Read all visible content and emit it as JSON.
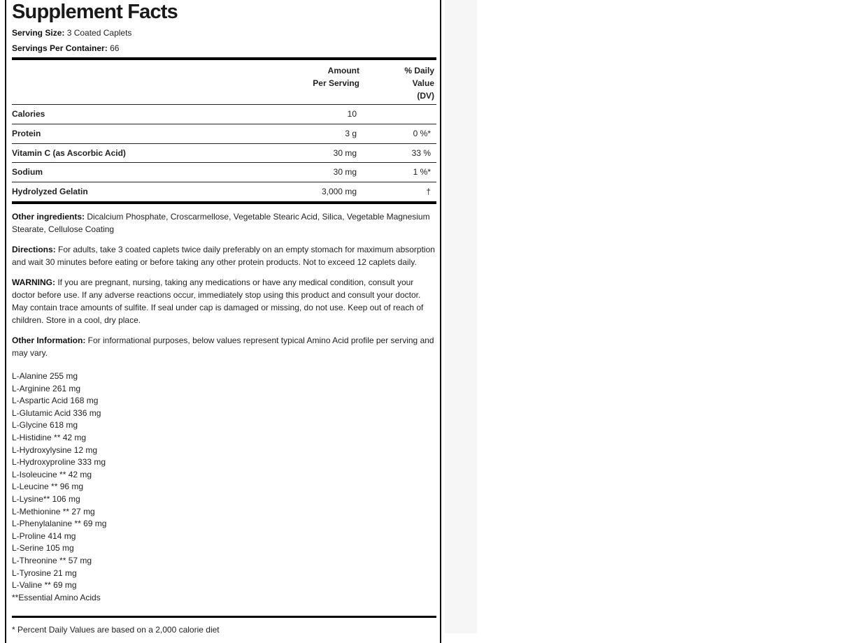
{
  "title": "Supplement Facts",
  "serving_size": {
    "label": "Serving Size:",
    "value": "3 Coated Caplets"
  },
  "servings_per_container": {
    "label": "Servings Per Container:",
    "value": "66"
  },
  "table": {
    "header": {
      "amount_line1": "Amount",
      "amount_line2": "Per Serving",
      "dv_line1": "% Daily",
      "dv_line2": "Value",
      "dv_line3": "(DV)"
    },
    "rows": [
      {
        "name": "Calories",
        "amount": "10",
        "dv": ""
      },
      {
        "name": "Protein",
        "amount": "3 g",
        "dv": "0 %*"
      },
      {
        "name": "Vitamin C (as Ascorbic Acid)",
        "amount": "30 mg",
        "dv": "33 %"
      },
      {
        "name": "Sodium",
        "amount": "30 mg",
        "dv": "1 %*"
      },
      {
        "name": "Hydrolyzed Gelatin",
        "amount": "3,000 mg",
        "dv": "†"
      }
    ]
  },
  "other_ingredients": {
    "label": "Other ingredients:",
    "text": " Dicalcium Phosphate, Croscarmellose, Vegetable Stearic Acid, Silica, Vegetable Magnesium Stearate, Cellulose Coating"
  },
  "directions": {
    "label": "Directions:",
    "text": " For adults, take 3 coated caplets twice daily preferably on an empty stomach for maximum absorption and wait 30 minutes before eating or before taking any other protein products. Not to exceed 12 caplets daily."
  },
  "warning": {
    "label": "WARNING:",
    "text": " If you are pregnant, nursing, taking any medications or have any medical condition, consult your doctor before use. If any adverse reactions occur, immediately stop using this product and consult your doctor. May contain trace amounts of sulfite. If seal under cap is damaged or missing, do not use. Keep out of reach of children. Store in a cool, dry place."
  },
  "other_information": {
    "label": "Other Information:",
    "text": " For informational purposes, below values represent typical Amino Acid profile per serving and may vary."
  },
  "amino_acids": [
    "L-Alanine 255 mg",
    "L-Arginine 261 mg",
    "L-Aspartic Acid 168 mg",
    "L-Glutamic Acid 336 mg",
    "L-Glycine 618 mg",
    "L-Histidine ** 42 mg",
    "L-Hydroxylysine 12 mg",
    "L-Hydroxyproline 333 mg",
    "L-Isoleucine ** 42 mg",
    "L-Leucine ** 96 mg",
    "L-Lysine** 106 mg",
    "L-Methionine ** 27 mg",
    "L-Phenylalanine ** 69 mg",
    "L-Proline 414 mg",
    "L-Serine 105 mg",
    "L-Threonine ** 57 mg",
    "L-Tyrosine 21 mg",
    "L-Valine ** 69 mg",
    "**Essential Amino Acids"
  ],
  "footnote": "* Percent Daily Values are based on a 2,000 calorie diet"
}
